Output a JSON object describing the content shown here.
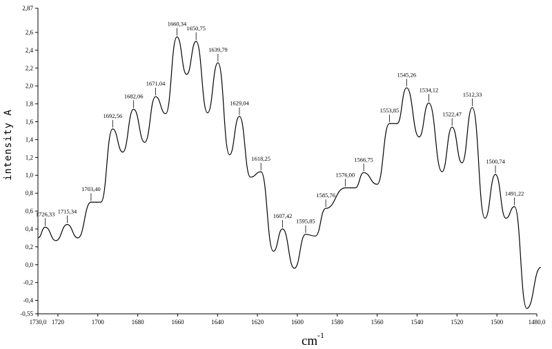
{
  "chart_data": {
    "type": "line",
    "title": "",
    "xlabel": "cm",
    "xlabel_superscript": "-1",
    "ylabel": "intensity  A",
    "xlim": [
      1730.0,
      1480.0
    ],
    "ylim": [
      -0.55,
      2.87
    ],
    "x_axis_reversed": true,
    "grid": false,
    "line_color": "#000000",
    "x_ticks": [
      1730.0,
      1720,
      1700,
      1680,
      1660,
      1640,
      1620,
      1600,
      1580,
      1560,
      1540,
      1520,
      1500,
      1480.0
    ],
    "x_tick_labels": [
      "1730,0",
      "1720",
      "1700",
      "1680",
      "1660",
      "1640",
      "1620",
      "1600",
      "1580",
      "1560",
      "1540",
      "1520",
      "1500",
      "1480,0"
    ],
    "y_ticks": [
      2.87,
      2.6,
      2.4,
      2.2,
      2.0,
      1.8,
      1.6,
      1.4,
      1.2,
      1.0,
      0.8,
      0.6,
      0.4,
      0.2,
      0.0,
      -0.2,
      -0.4,
      -0.55
    ],
    "y_tick_labels": [
      "2,87",
      "2,6",
      "2,4",
      "2,2",
      "2,0",
      "1,8",
      "1,6",
      "1,4",
      "1,2",
      "1,0",
      "0,8",
      "0,6",
      "0,4",
      "0,2",
      "0,0",
      "-0,2",
      "-0,4",
      "-0,55"
    ],
    "series": [
      {
        "x": [
          1730.0,
          1726.33,
          1721.0,
          1715.34,
          1710.0,
          1703.4,
          1698.5,
          1692.56,
          1687.5,
          1682.06,
          1676.5,
          1671.04,
          1666.0,
          1660.34,
          1655.5,
          1650.75,
          1645.0,
          1639.79,
          1634.0,
          1629.04,
          1623.5,
          1618.25,
          1612.0,
          1607.42,
          1601.5,
          1595.85,
          1591.0,
          1585.76,
          1576.0,
          1571.0,
          1566.75,
          1560.0,
          1553.85,
          1550.0,
          1545.26,
          1539.0,
          1534.12,
          1527.5,
          1522.47,
          1517.5,
          1512.33,
          1506.0,
          1500.74,
          1495.5,
          1491.22,
          1485.0,
          1478.0
        ],
        "y": [
          0.3,
          0.42,
          0.27,
          0.45,
          0.3,
          0.7,
          0.7,
          1.52,
          1.26,
          1.74,
          1.37,
          1.88,
          1.69,
          2.55,
          2.13,
          2.5,
          1.7,
          2.26,
          1.23,
          1.66,
          0.98,
          1.04,
          0.15,
          0.4,
          -0.04,
          0.34,
          0.32,
          0.63,
          0.86,
          0.86,
          1.03,
          0.9,
          1.58,
          1.58,
          1.98,
          1.43,
          1.81,
          1.04,
          1.54,
          1.14,
          1.76,
          0.52,
          1.01,
          0.52,
          0.65,
          -0.49,
          -0.03
        ]
      }
    ],
    "peak_labels": [
      {
        "x": 1726.33,
        "y": 0.42,
        "label": "1726,33"
      },
      {
        "x": 1715.34,
        "y": 0.45,
        "label": "1715,34"
      },
      {
        "x": 1703.4,
        "y": 0.7,
        "label": "1703,40"
      },
      {
        "x": 1692.56,
        "y": 1.52,
        "label": "1692,56"
      },
      {
        "x": 1682.06,
        "y": 1.74,
        "label": "1682,06"
      },
      {
        "x": 1671.04,
        "y": 1.88,
        "label": "1671,04"
      },
      {
        "x": 1660.34,
        "y": 2.55,
        "label": "1660,34"
      },
      {
        "x": 1650.75,
        "y": 2.5,
        "label": "1650,75"
      },
      {
        "x": 1639.79,
        "y": 2.26,
        "label": "1639,79"
      },
      {
        "x": 1629.04,
        "y": 1.66,
        "label": "1629,04"
      },
      {
        "x": 1618.25,
        "y": 1.04,
        "label": "1618,25"
      },
      {
        "x": 1607.42,
        "y": 0.4,
        "label": "1607,42"
      },
      {
        "x": 1595.85,
        "y": 0.34,
        "label": "1595,85"
      },
      {
        "x": 1585.76,
        "y": 0.63,
        "label": "1585,76"
      },
      {
        "x": 1576.0,
        "y": 0.86,
        "label": "1576,00"
      },
      {
        "x": 1566.75,
        "y": 1.03,
        "label": "1566,75"
      },
      {
        "x": 1553.85,
        "y": 1.58,
        "label": "1553,85"
      },
      {
        "x": 1545.26,
        "y": 1.98,
        "label": "1545,26"
      },
      {
        "x": 1534.12,
        "y": 1.81,
        "label": "1534,12"
      },
      {
        "x": 1522.47,
        "y": 1.54,
        "label": "1522,47"
      },
      {
        "x": 1512.33,
        "y": 1.76,
        "label": "1512,33"
      },
      {
        "x": 1500.74,
        "y": 1.01,
        "label": "1500,74"
      },
      {
        "x": 1491.22,
        "y": 0.65,
        "label": "1491,22"
      }
    ]
  }
}
